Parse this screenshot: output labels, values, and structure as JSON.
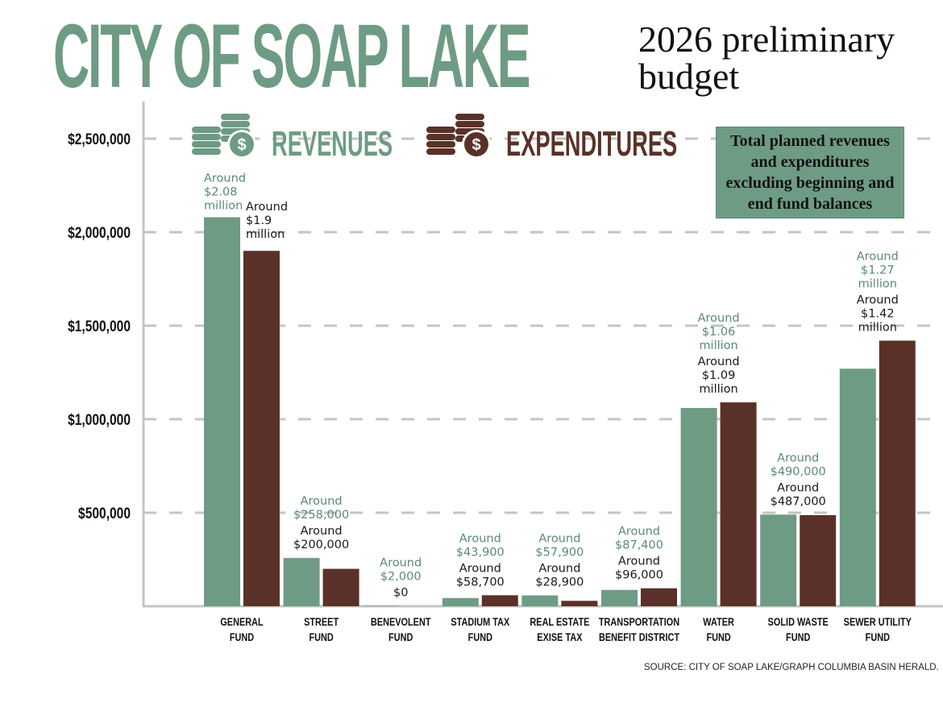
{
  "header": {
    "title": "CITY OF SOAP LAKE",
    "subtitle": "2026 preliminary\nbudget"
  },
  "legend": {
    "revenues_label": "REVENUES",
    "expenditures_label": "EXPENDITURES",
    "revenues_icon": "coin-stack-dollar-icon",
    "expenditures_icon": "coin-stack-dollar-icon"
  },
  "note": "Total planned revenues and expenditures excluding beginning and end fund balances",
  "source": "SOURCE: CITY OF SOAP LAKE/GRAPH COLUMBIA BASIN HERALD.",
  "colors": {
    "revenues": "#6e9b84",
    "expenditures": "#5a3128",
    "grid": "#c4c4c4",
    "revenue_label_text": "#5b8a72",
    "expenditure_label_text": "#1a1a1a"
  },
  "chart_data": {
    "type": "bar",
    "title": "CITY OF SOAP LAKE 2026 preliminary budget",
    "xlabel": "",
    "ylabel": "",
    "ylim": [
      0,
      2500000
    ],
    "yticks": [
      500000,
      1000000,
      1500000,
      2000000,
      2500000
    ],
    "ytick_labels": [
      "$500,000",
      "$1,000,000",
      "$1,500,000",
      "$2,000,000",
      "$2,500,000"
    ],
    "grid": true,
    "legend_position": "top",
    "categories": [
      "GENERAL\nFUND",
      "STREET\nFUND",
      "BENEVOLENT\nFUND",
      "STADIUM TAX\nFUND",
      "REAL ESTATE\nEXISE TAX",
      "TRANSPORTATION\nBENEFIT DISTRICT",
      "WATER\nFUND",
      "SOLID WASTE\nFUND",
      "SEWER UTILITY\nFUND"
    ],
    "series": [
      {
        "name": "Revenues",
        "values": [
          2080000,
          258000,
          2000,
          43900,
          57900,
          87400,
          1060000,
          490000,
          1270000
        ],
        "labels": [
          "Around\n$2.08\nmillion",
          "Around\n$258,000",
          "Around\n$2,000",
          "Around\n$43,900",
          "Around\n$57,900",
          "Around\n$87,400",
          "Around\n$1.06\nmillion",
          "Around\n$490,000",
          "Around\n$1.27\nmillion"
        ]
      },
      {
        "name": "Expenditures",
        "values": [
          1900000,
          200000,
          0,
          58700,
          28900,
          96000,
          1090000,
          487000,
          1420000
        ],
        "labels": [
          "Around\n$1.9\nmillion",
          "Around\n$200,000",
          "$0",
          "Around\n$58,700",
          "Around\n$28,900",
          "Around\n$96,000",
          "Around\n$1.09\nmillion",
          "Around\n$487,000",
          "Around\n$1.42\nmillion"
        ]
      }
    ]
  }
}
